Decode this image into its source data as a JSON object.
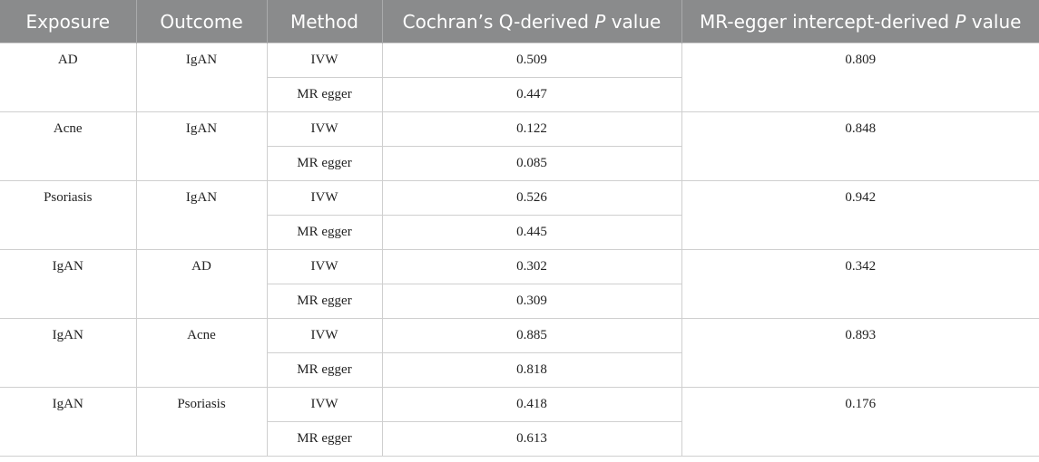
{
  "table": {
    "headers": {
      "exposure": "Exposure",
      "outcome": "Outcome",
      "method": "Method",
      "cochran_prefix": "Cochran’s Q-derived ",
      "cochran_p": "P",
      "cochran_suffix": " value",
      "egger_prefix": "MR-egger intercept-derived ",
      "egger_p": "P",
      "egger_suffix": " value"
    },
    "groups": [
      {
        "exposure": "AD",
        "outcome": "IgAN",
        "egger_p": "0.809",
        "rows": [
          {
            "method": "IVW",
            "cochran_p": "0.509"
          },
          {
            "method": "MR egger",
            "cochran_p": "0.447"
          }
        ]
      },
      {
        "exposure": "Acne",
        "outcome": "IgAN",
        "egger_p": "0.848",
        "rows": [
          {
            "method": "IVW",
            "cochran_p": "0.122"
          },
          {
            "method": "MR egger",
            "cochran_p": "0.085"
          }
        ]
      },
      {
        "exposure": "Psoriasis",
        "outcome": "IgAN",
        "egger_p": "0.942",
        "rows": [
          {
            "method": "IVW",
            "cochran_p": "0.526"
          },
          {
            "method": "MR egger",
            "cochran_p": "0.445"
          }
        ]
      },
      {
        "exposure": "IgAN",
        "outcome": "AD",
        "egger_p": "0.342",
        "rows": [
          {
            "method": "IVW",
            "cochran_p": "0.302"
          },
          {
            "method": "MR egger",
            "cochran_p": "0.309"
          }
        ]
      },
      {
        "exposure": "IgAN",
        "outcome": "Acne",
        "egger_p": "0.893",
        "rows": [
          {
            "method": "IVW",
            "cochran_p": "0.885"
          },
          {
            "method": "MR egger",
            "cochran_p": "0.818"
          }
        ]
      },
      {
        "exposure": "IgAN",
        "outcome": "Psoriasis",
        "egger_p": "0.176",
        "rows": [
          {
            "method": "IVW",
            "cochran_p": "0.418"
          },
          {
            "method": "MR egger",
            "cochran_p": "0.613"
          }
        ]
      }
    ]
  }
}
